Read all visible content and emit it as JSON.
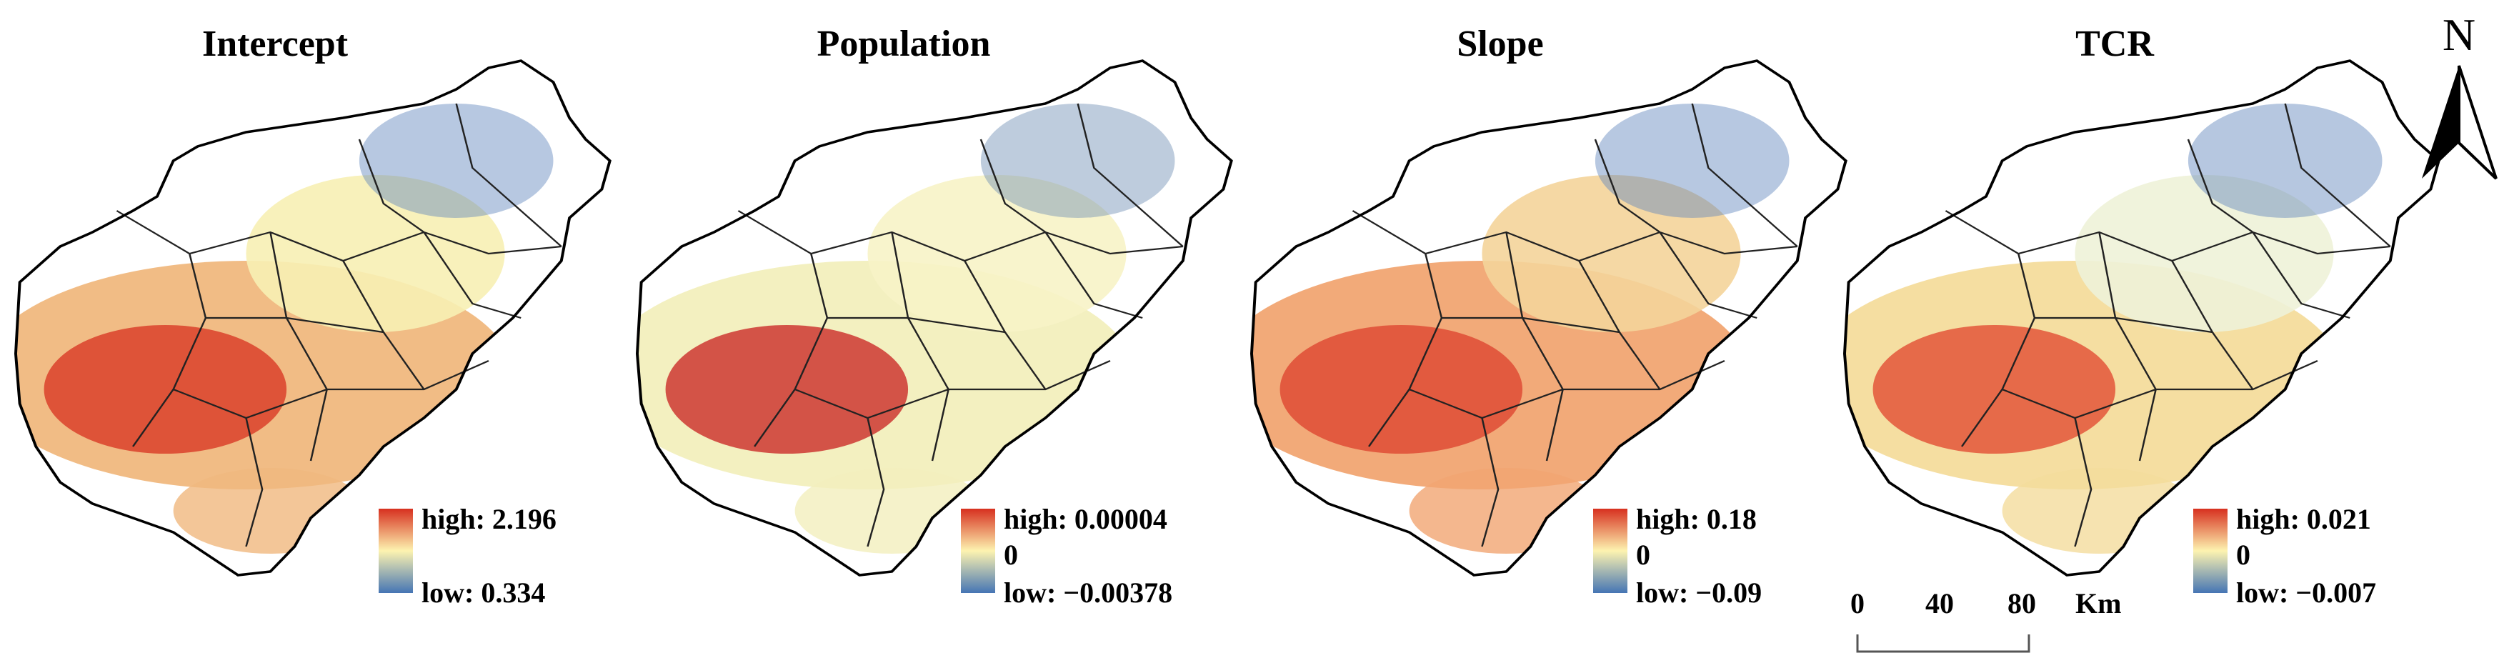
{
  "panels": [
    {
      "id": "intercept",
      "title": "Intercept",
      "legend": {
        "high_label": "high: 2.196",
        "low_label": "low: 0.334"
      },
      "colors": {
        "base": "#f0b87e",
        "hot": "#d7301f",
        "cool": "#5f86bd",
        "pale": "#f7efb4"
      }
    },
    {
      "id": "population",
      "title": "Population",
      "legend": {
        "high_label": "high: 0.00004",
        "mid_label": "0",
        "low_label": "low: −0.00378"
      },
      "colors": {
        "base": "#f2efbd",
        "hot": "#c81f1f",
        "cool": "#6f8fb4",
        "pale": "#f7f3c7"
      }
    },
    {
      "id": "slope",
      "title": "Slope",
      "legend": {
        "high_label": "high:  0.18",
        "mid_label": "0",
        "low_label": "low: −0.09"
      },
      "colors": {
        "base": "#f1a572",
        "hot": "#dc3f2c",
        "cool": "#5f86bd",
        "pale": "#f4d49a"
      }
    },
    {
      "id": "tcr",
      "title": "TCR",
      "legend": {
        "high_label": "high: 0.021",
        "mid_label": "0",
        "low_label": "low: −0.007"
      },
      "colors": {
        "base": "#f4dc9c",
        "hot": "#e0432c",
        "cool": "#5d83ba",
        "pale": "#eef2d8"
      }
    }
  ],
  "scale_bar": {
    "labels": [
      "0",
      "40",
      "80"
    ],
    "unit": "Km"
  },
  "north_arrow": {
    "label": "N",
    "icon": "north-arrow-icon"
  },
  "ramp_colors": {
    "high": "#d7301f",
    "mid": "#fdf3b0",
    "low": "#4575b4"
  }
}
